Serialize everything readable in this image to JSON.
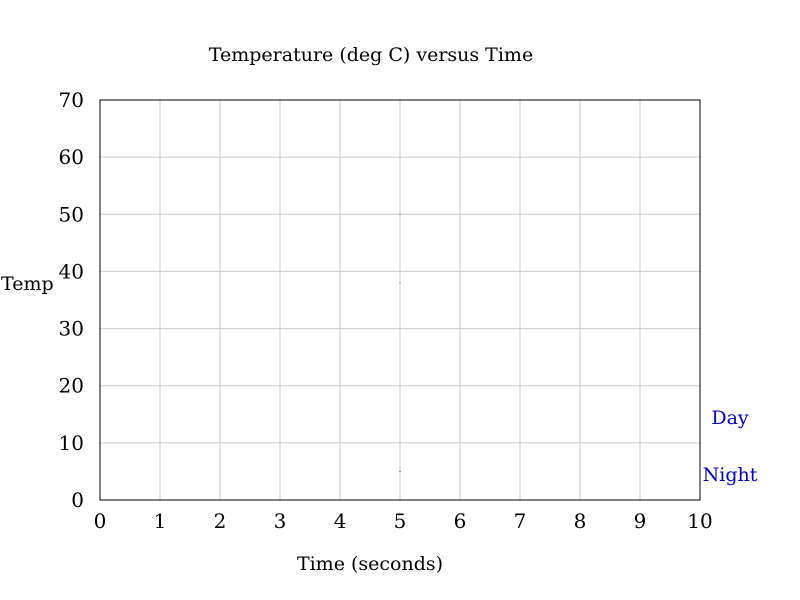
{
  "chart_data": {
    "type": "scatter",
    "title": "Temperature (deg C) versus Time",
    "xlabel": "Time (seconds)",
    "ylabel": "Temp",
    "xlim": [
      0,
      10
    ],
    "ylim": [
      0,
      70
    ],
    "x_ticks": [
      0,
      1,
      2,
      3,
      4,
      5,
      6,
      7,
      8,
      9,
      10
    ],
    "y_ticks": [
      0,
      10,
      20,
      30,
      40,
      50,
      60,
      70
    ],
    "grid": true,
    "legend_position": "right",
    "series": [
      {
        "name": "Day",
        "color": "#ff0000",
        "points": [
          {
            "x": 5,
            "y": 50
          },
          {
            "x": 5,
            "y": 38
          }
        ]
      },
      {
        "name": "Night",
        "color": "#0000ff",
        "points": [
          {
            "x": 5,
            "y": 5
          }
        ]
      }
    ],
    "legend_color": "#0000cc",
    "grid_color": "#cccccc"
  }
}
